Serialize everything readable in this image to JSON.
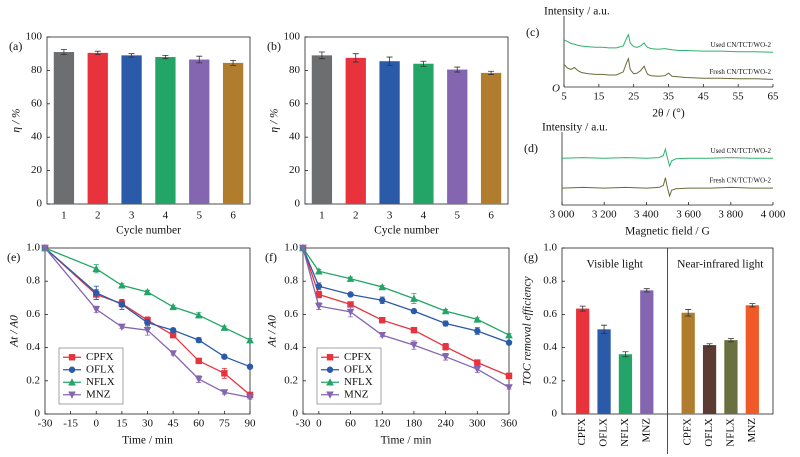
{
  "chart_data": [
    {
      "type": "bar",
      "panel_label": "(a)",
      "x_label": "Cycle number",
      "y_label": "η / %",
      "categories": [
        "1",
        "2",
        "3",
        "4",
        "5",
        "6"
      ],
      "values": [
        91,
        90.5,
        89,
        88,
        86.5,
        84.5
      ],
      "errors": [
        1.5,
        1,
        1,
        1,
        2,
        1.5
      ],
      "colors": [
        "#6d6e70",
        "#e8333c",
        "#2a5aa8",
        "#22a566",
        "#8465b0",
        "#b07c2e"
      ],
      "ylim": [
        0,
        100
      ],
      "yticks": [
        0,
        20,
        40,
        60,
        80,
        100
      ]
    },
    {
      "type": "bar",
      "panel_label": "(b)",
      "x_label": "Cycle number",
      "y_label": "η / %",
      "categories": [
        "1",
        "2",
        "3",
        "4",
        "5",
        "6"
      ],
      "values": [
        89,
        87.5,
        85.5,
        84,
        80.5,
        78.5
      ],
      "errors": [
        2,
        2.5,
        2.5,
        1.5,
        1.5,
        1
      ],
      "colors": [
        "#6d6e70",
        "#e8333c",
        "#2a5aa8",
        "#22a566",
        "#8465b0",
        "#b07c2e"
      ],
      "ylim": [
        0,
        100
      ],
      "yticks": [
        0,
        20,
        40,
        60,
        80,
        100
      ]
    },
    {
      "type": "line",
      "panel_label": "(c)",
      "x_label": "2θ / (°)",
      "y_label": "Intensity / a.u.",
      "origin_label": "O",
      "x": [
        5,
        6,
        7,
        8,
        9,
        10,
        12,
        14,
        16,
        18,
        20,
        22,
        23,
        23.5,
        24,
        25,
        26,
        27,
        28,
        28.5,
        29,
        30,
        32,
        34,
        35,
        36,
        38,
        40,
        45,
        50,
        55,
        60,
        65
      ],
      "series": [
        {
          "name": "Used CN/TCT/WO-2",
          "color": "#2db36e",
          "values": [
            7.5,
            7.2,
            6.9,
            6.8,
            6.6,
            6.5,
            6.4,
            6.3,
            6.3,
            6.2,
            6.2,
            6.5,
            7.8,
            8.3,
            7.0,
            6.4,
            6.3,
            6.5,
            7.0,
            6.6,
            6.3,
            6.1,
            6.0,
            6.1,
            6.0,
            5.9,
            5.8,
            5.8,
            5.7,
            5.7,
            5.6,
            5.6,
            5.5
          ]
        },
        {
          "name": "Fresh CN/TCT/WO-2",
          "color": "#6b6b3a",
          "values": [
            3.6,
            3.0,
            2.8,
            3.1,
            2.6,
            2.3,
            2.1,
            2.0,
            2.0,
            1.9,
            1.9,
            2.4,
            3.9,
            4.5,
            2.8,
            2.1,
            2.2,
            2.6,
            3.3,
            2.6,
            2.0,
            1.8,
            1.7,
            1.8,
            2.2,
            1.7,
            1.6,
            1.5,
            1.4,
            1.4,
            1.3,
            1.3,
            1.2
          ]
        }
      ],
      "xlim": [
        5,
        65
      ],
      "xticks": [
        5,
        15,
        25,
        35,
        45,
        55,
        65
      ],
      "ylim": [
        0,
        10
      ]
    },
    {
      "type": "line",
      "panel_label": "(d)",
      "x_label": "Magnetic field / G",
      "y_label": "Intensity / a.u.",
      "x": [
        3000,
        3100,
        3200,
        3300,
        3400,
        3460,
        3480,
        3490,
        3500,
        3510,
        3520,
        3540,
        3600,
        3700,
        3800,
        3900,
        4000
      ],
      "series": [
        {
          "name": "Used CN/TCT/WO-2",
          "color": "#2db36e",
          "values": [
            7.2,
            7.3,
            7.2,
            7.3,
            7.2,
            7.3,
            7.6,
            8.6,
            7.2,
            6.0,
            6.8,
            7.1,
            7.2,
            7.2,
            7.3,
            7.2,
            7.2
          ]
        },
        {
          "name": "Fresh CN/TCT/WO-2",
          "color": "#6b6b3a",
          "values": [
            2.6,
            2.7,
            2.6,
            2.7,
            2.6,
            2.7,
            3.0,
            4.2,
            2.6,
            1.4,
            2.3,
            2.5,
            2.6,
            2.6,
            2.7,
            2.6,
            2.6
          ]
        }
      ],
      "xlim": [
        3000,
        4000
      ],
      "xticks": [
        {
          "value": 3000,
          "label": "3 000"
        },
        {
          "value": 3200,
          "label": "3 200"
        },
        {
          "value": 3400,
          "label": "3 400"
        },
        {
          "value": 3600,
          "label": "3 600"
        },
        {
          "value": 3800,
          "label": "3 800"
        },
        {
          "value": 4000,
          "label": "4 000"
        }
      ],
      "ylim": [
        0,
        10
      ]
    },
    {
      "type": "line",
      "panel_label": "(e)",
      "x_label": "Time / min",
      "y_label": "At / A0",
      "legend": "lower left",
      "x": [
        -30,
        0,
        15,
        30,
        45,
        60,
        75,
        90
      ],
      "series": [
        {
          "name": "CPFX",
          "color": "#e8333c",
          "marker": "square",
          "values": [
            1.0,
            0.72,
            0.665,
            0.565,
            0.475,
            0.32,
            0.245,
            0.115
          ],
          "errors": [
            0,
            0.03,
            0.02,
            0.02,
            0.015,
            0.015,
            0.03,
            0.01
          ]
        },
        {
          "name": "OFLX",
          "color": "#2a5aa8",
          "marker": "circle",
          "values": [
            1.0,
            0.73,
            0.66,
            0.55,
            0.505,
            0.445,
            0.345,
            0.285
          ],
          "errors": [
            0,
            0.04,
            0.03,
            0.02,
            0.01,
            0.015,
            0.01,
            0.01
          ]
        },
        {
          "name": "NFLX",
          "color": "#22a566",
          "marker": "triangle-up",
          "values": [
            1.0,
            0.875,
            0.775,
            0.735,
            0.645,
            0.595,
            0.52,
            0.445
          ],
          "errors": [
            0,
            0.025,
            0.01,
            0.01,
            0.01,
            0.015,
            0.01,
            0.01
          ]
        },
        {
          "name": "MNZ",
          "color": "#8465b0",
          "marker": "triangle-down",
          "values": [
            1.0,
            0.63,
            0.525,
            0.505,
            0.365,
            0.21,
            0.13,
            0.1
          ],
          "errors": [
            0,
            0.02,
            0.01,
            0.03,
            0.01,
            0.02,
            0.01,
            0.01
          ]
        }
      ],
      "xlim": [
        -30,
        90
      ],
      "xticks": [
        -30,
        -15,
        0,
        15,
        30,
        45,
        60,
        75,
        90
      ],
      "ylim": [
        0,
        1
      ],
      "yticks": [
        0,
        0.2,
        0.4,
        0.6,
        0.8,
        {
          "value": 1,
          "label": "1.0"
        }
      ]
    },
    {
      "type": "line",
      "panel_label": "(f)",
      "x_label": "Time / min",
      "y_label": "At / A0",
      "legend": "lower left",
      "x": [
        -30,
        0,
        60,
        120,
        180,
        240,
        300,
        360
      ],
      "series": [
        {
          "name": "CPFX",
          "color": "#e8333c",
          "marker": "square",
          "values": [
            1.0,
            0.72,
            0.66,
            0.565,
            0.505,
            0.405,
            0.31,
            0.23
          ],
          "errors": [
            0,
            0.02,
            0.01,
            0.01,
            0.01,
            0.02,
            0.015,
            0.01
          ]
        },
        {
          "name": "OFLX",
          "color": "#2a5aa8",
          "marker": "circle",
          "values": [
            1.0,
            0.77,
            0.72,
            0.685,
            0.62,
            0.545,
            0.5,
            0.43
          ],
          "errors": [
            0,
            0.02,
            0.01,
            0.02,
            0.01,
            0.015,
            0.02,
            0.01
          ]
        },
        {
          "name": "NFLX",
          "color": "#22a566",
          "marker": "triangle-up",
          "values": [
            1.0,
            0.86,
            0.815,
            0.765,
            0.695,
            0.62,
            0.57,
            0.475
          ],
          "errors": [
            0,
            0.01,
            0.01,
            0.01,
            0.03,
            0.01,
            0.01,
            0.01
          ]
        },
        {
          "name": "MNZ",
          "color": "#8465b0",
          "marker": "triangle-down",
          "values": [
            1.0,
            0.65,
            0.615,
            0.475,
            0.415,
            0.345,
            0.27,
            0.16
          ],
          "errors": [
            0,
            0.02,
            0.03,
            0.01,
            0.025,
            0.02,
            0.02,
            0.01
          ]
        }
      ],
      "xlim": [
        -30,
        360
      ],
      "xticks": [
        -30,
        0,
        60,
        120,
        180,
        240,
        300,
        360
      ],
      "ylim": [
        0,
        1
      ],
      "yticks": [
        0,
        0.2,
        0.4,
        0.6,
        0.8,
        {
          "value": 1,
          "label": "1.0"
        }
      ]
    },
    {
      "type": "bar",
      "panel_label": "(g)",
      "y_label": "TOC removal efficiency",
      "group_labels": [
        "Visible light",
        "Near-infrared light"
      ],
      "categories": [
        "CPFX",
        "OFLX",
        "NFLX",
        "MNZ",
        "CPFX",
        "OFLX",
        "NFLX",
        "MNZ"
      ],
      "values": [
        0.635,
        0.51,
        0.36,
        0.745,
        0.61,
        0.415,
        0.445,
        0.655
      ],
      "errors": [
        0.015,
        0.025,
        0.015,
        0.01,
        0.02,
        0.008,
        0.01,
        0.01
      ],
      "colors": [
        "#e8333c",
        "#2a5aa8",
        "#22a566",
        "#8465b0",
        "#b07c2e",
        "#5c3b32",
        "#6b7040",
        "#ef5a28"
      ],
      "ylim": [
        0,
        1
      ],
      "yticks": [
        0,
        0.2,
        0.4,
        0.6,
        0.8,
        {
          "value": 1,
          "label": "1.0"
        }
      ]
    }
  ]
}
